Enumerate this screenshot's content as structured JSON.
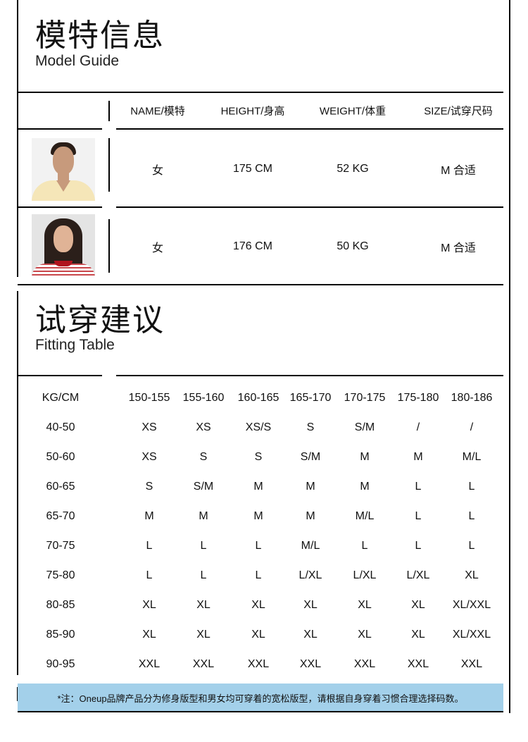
{
  "model_section": {
    "title_cn": "模特信息",
    "title_en": "Model Guide",
    "headers": [
      "NAME/模特",
      "HEIGHT/身高",
      "WEIGHT/体重",
      "SIZE/试穿尺码"
    ],
    "rows": [
      {
        "photo": "model-photo-1",
        "name": "女",
        "height": "175 CM",
        "weight": "52 KG",
        "size": "M 合适"
      },
      {
        "photo": "model-photo-2",
        "name": "女",
        "height": "176 CM",
        "weight": "50 KG",
        "size": "M 合适"
      }
    ]
  },
  "fitting_section": {
    "title_cn": "试穿建议",
    "title_en": "Fitting Table",
    "corner": "KG/CM",
    "heights": [
      "150-155",
      "155-160",
      "160-165",
      "165-170",
      "170-175",
      "175-180",
      "180-186"
    ],
    "rows": [
      {
        "weight": "40-50",
        "sizes": [
          "XS",
          "XS",
          "XS/S",
          "S",
          "S/M",
          "/",
          "/"
        ]
      },
      {
        "weight": "50-60",
        "sizes": [
          "XS",
          "S",
          "S",
          "S/M",
          "M",
          "M",
          "M/L"
        ]
      },
      {
        "weight": "60-65",
        "sizes": [
          "S",
          "S/M",
          "M",
          "M",
          "M",
          "L",
          "L"
        ]
      },
      {
        "weight": "65-70",
        "sizes": [
          "M",
          "M",
          "M",
          "M",
          "M/L",
          "L",
          "L"
        ]
      },
      {
        "weight": "70-75",
        "sizes": [
          "L",
          "L",
          "L",
          "M/L",
          "L",
          "L",
          "L"
        ]
      },
      {
        "weight": "75-80",
        "sizes": [
          "L",
          "L",
          "L",
          "L/XL",
          "L/XL",
          "L/XL",
          "XL"
        ]
      },
      {
        "weight": "80-85",
        "sizes": [
          "XL",
          "XL",
          "XL",
          "XL",
          "XL",
          "XL",
          "XL/XXL"
        ]
      },
      {
        "weight": "85-90",
        "sizes": [
          "XL",
          "XL",
          "XL",
          "XL",
          "XL",
          "XL",
          "XL/XXL"
        ]
      },
      {
        "weight": "90-95",
        "sizes": [
          "XXL",
          "XXL",
          "XXL",
          "XXL",
          "XXL",
          "XXL",
          "XXL"
        ]
      }
    ]
  },
  "note": "*注：Oneup品牌产品分为修身版型和男女均可穿着的宽松版型，请根据自身穿着习惯合理选择码数。",
  "colors": {
    "note_bg": "#a3d0ea",
    "lines": "#000000"
  }
}
